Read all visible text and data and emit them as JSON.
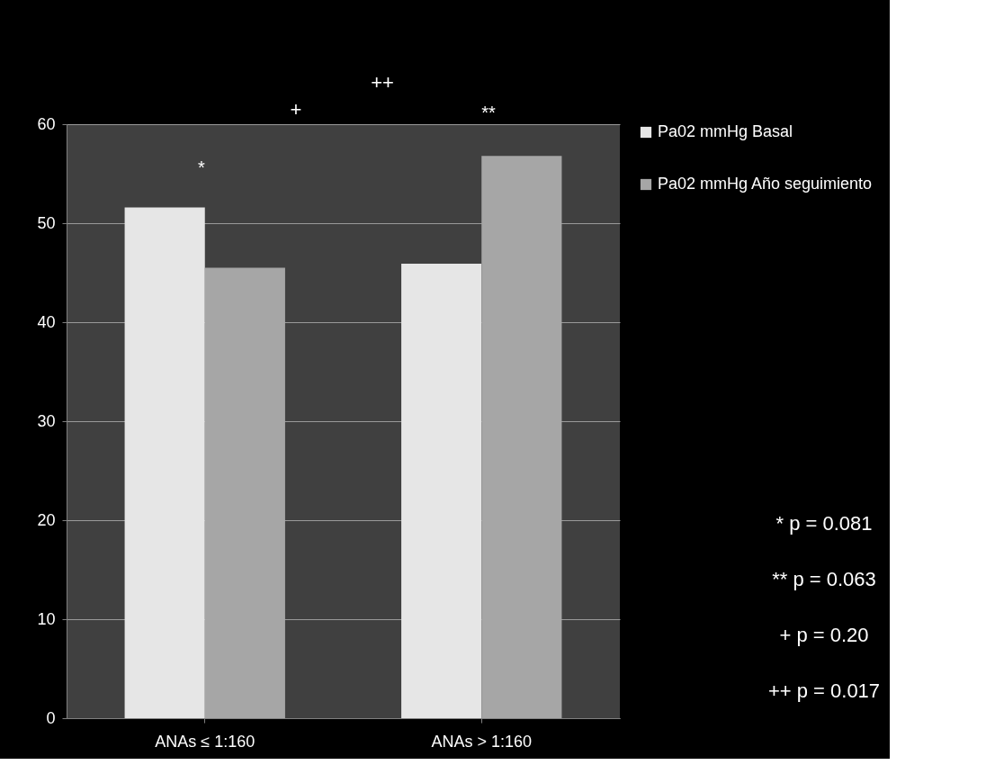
{
  "chart_data": {
    "type": "bar",
    "categories": [
      "ANAs  ≤ 1:160",
      "ANAs > 1:160"
    ],
    "series": [
      {
        "name": "Pa02 mmHg Basal",
        "color": "#e6e6e6",
        "values": [
          51.6,
          45.9
        ]
      },
      {
        "name": "Pa02 mmHg Año seguimiento",
        "color": "#a6a6a6",
        "values": [
          45.5,
          56.8
        ]
      }
    ],
    "ylim": [
      0,
      60
    ],
    "yticks": [
      0,
      10,
      20,
      30,
      40,
      50,
      60
    ],
    "grid": "y",
    "legend": "right",
    "annotations": [
      "*",
      "**",
      "+",
      "++",
      "* p = 0.081",
      "** p = 0.063",
      "+ p = 0.20",
      "++ p = 0.017"
    ]
  }
}
